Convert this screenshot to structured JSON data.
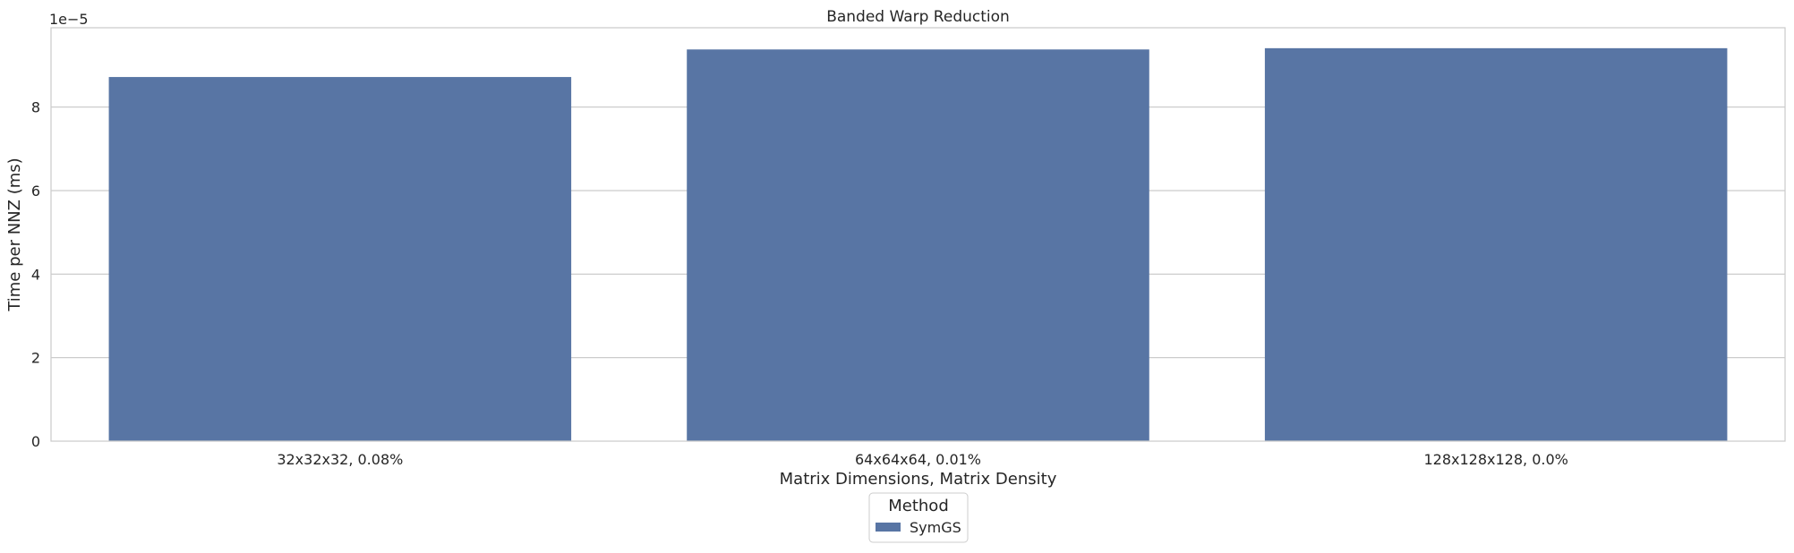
{
  "chart_data": {
    "type": "bar",
    "title": "Banded Warp Reduction",
    "xlabel": "Matrix Dimensions, Matrix Density",
    "ylabel": "Time per NNZ (ms)",
    "y_offset_label": "1e−5",
    "y_scale": 1e-05,
    "categories": [
      "32x32x32, 0.08%",
      "64x64x64, 0.01%",
      "128x128x128, 0.0%"
    ],
    "series": [
      {
        "name": "SymGS",
        "color": "#5875a4",
        "values": [
          8.72e-05,
          9.38e-05,
          9.41e-05
        ]
      }
    ],
    "ylim": [
      0,
      9.9e-05
    ],
    "yticks": [
      0,
      2,
      4,
      6,
      8
    ],
    "yticklabels": [
      "0",
      "2",
      "4",
      "6",
      "8"
    ],
    "grid": true,
    "legend": {
      "title": "Method",
      "placement": "bottom-center",
      "entries": [
        "SymGS"
      ]
    },
    "colors": {
      "bar": "#5875a4",
      "grid": "#cccccc",
      "axes": "#cccccc",
      "text": "#262626"
    }
  }
}
